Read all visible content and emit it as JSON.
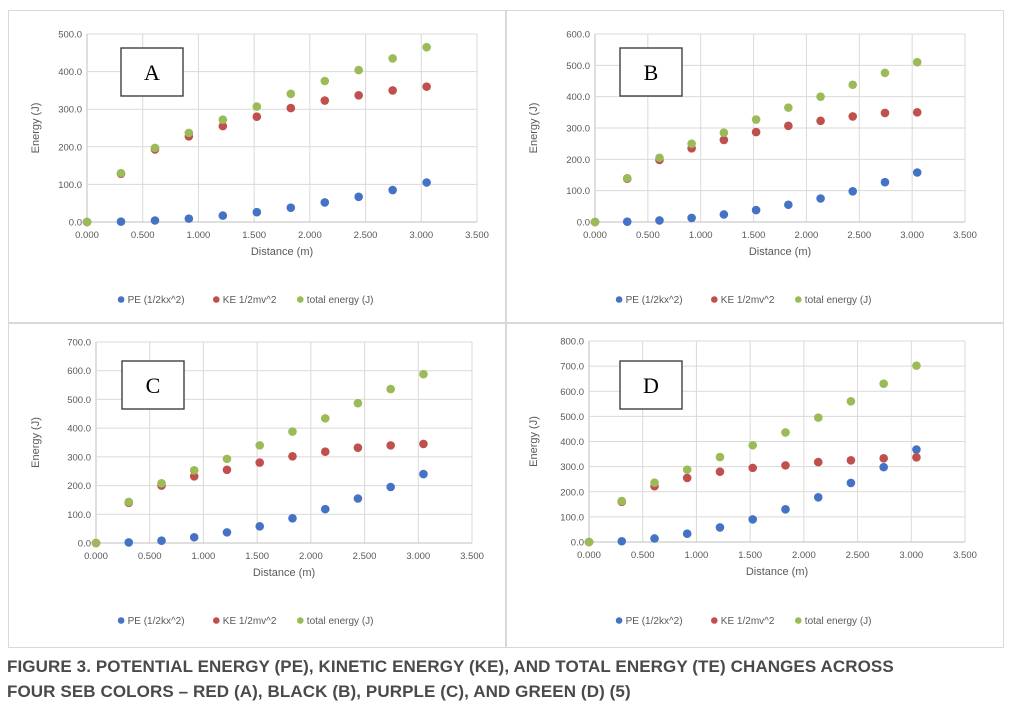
{
  "chart_data": [
    {
      "type": "scatter",
      "panel_label": "A",
      "xlabel": "Distance (m)",
      "ylabel": "Energy (J)",
      "xlim": [
        0,
        3.5
      ],
      "ylim": [
        0,
        500
      ],
      "xticks": [
        "0.000",
        "0.500",
        "1.000",
        "1.500",
        "2.000",
        "2.500",
        "3.000",
        "3.500"
      ],
      "yticks": [
        "0.0",
        "100.0",
        "200.0",
        "300.0",
        "400.0",
        "500.0"
      ],
      "grid": true,
      "legend_position": "bottom",
      "x": [
        0,
        0.305,
        0.61,
        0.914,
        1.219,
        1.524,
        1.829,
        2.134,
        2.438,
        2.743,
        3.048
      ],
      "series": [
        {
          "name": "PE (1/2kx^2)",
          "color": "#4472C4",
          "values": [
            0,
            1,
            4,
            9,
            17,
            26,
            38,
            52,
            67,
            85,
            105
          ]
        },
        {
          "name": "KE 1/2mv^2",
          "color": "#C0504D",
          "values": [
            0,
            128,
            193,
            228,
            255,
            280,
            303,
            323,
            337,
            350,
            360
          ]
        },
        {
          "name": "total energy (J)",
          "color": "#9BBB59",
          "values": [
            0,
            130,
            197,
            237,
            272,
            307,
            341,
            375,
            404,
            435,
            465
          ]
        }
      ]
    },
    {
      "type": "scatter",
      "panel_label": "B",
      "xlabel": "Distance (m)",
      "ylabel": "Energy (J)",
      "xlim": [
        0,
        3.5
      ],
      "ylim": [
        0,
        600
      ],
      "xticks": [
        "0.000",
        "0.500",
        "1.000",
        "1.500",
        "2.000",
        "2.500",
        "3.000",
        "3.500"
      ],
      "yticks": [
        "0.0",
        "100.0",
        "200.0",
        "300.0",
        "400.0",
        "500.0",
        "600.0"
      ],
      "grid": true,
      "legend_position": "bottom",
      "x": [
        0,
        0.305,
        0.61,
        0.914,
        1.219,
        1.524,
        1.829,
        2.134,
        2.438,
        2.743,
        3.048
      ],
      "series": [
        {
          "name": "PE (1/2kx^2)",
          "color": "#4472C4",
          "values": [
            0,
            1,
            5,
            13,
            24,
            38,
            55,
            75,
            98,
            127,
            158
          ]
        },
        {
          "name": "KE 1/2mv^2",
          "color": "#C0504D",
          "values": [
            0,
            138,
            198,
            235,
            262,
            287,
            307,
            323,
            337,
            348,
            350
          ]
        },
        {
          "name": "total energy (J)",
          "color": "#9BBB59",
          "values": [
            0,
            140,
            205,
            250,
            285,
            327,
            365,
            400,
            438,
            476,
            510
          ]
        }
      ]
    },
    {
      "type": "scatter",
      "panel_label": "C",
      "xlabel": "Distance (m)",
      "ylabel": "Energy (J)",
      "xlim": [
        0,
        3.5
      ],
      "ylim": [
        0,
        700
      ],
      "xticks": [
        "0.000",
        "0.500",
        "1.000",
        "1.500",
        "2.000",
        "2.500",
        "3.000",
        "3.500"
      ],
      "yticks": [
        "0.0",
        "100.0",
        "200.0",
        "300.0",
        "400.0",
        "500.0",
        "600.0",
        "700.0"
      ],
      "grid": true,
      "legend_position": "bottom",
      "x": [
        0,
        0.305,
        0.61,
        0.914,
        1.219,
        1.524,
        1.829,
        2.134,
        2.438,
        2.743,
        3.048
      ],
      "series": [
        {
          "name": "PE (1/2kx^2)",
          "color": "#4472C4",
          "values": [
            0,
            2,
            8,
            20,
            37,
            58,
            86,
            118,
            155,
            195,
            240
          ]
        },
        {
          "name": "KE 1/2mv^2",
          "color": "#C0504D",
          "values": [
            0,
            140,
            200,
            232,
            255,
            280,
            302,
            318,
            332,
            340,
            345
          ]
        },
        {
          "name": "total energy (J)",
          "color": "#9BBB59",
          "values": [
            0,
            143,
            208,
            253,
            293,
            340,
            388,
            434,
            487,
            536,
            588
          ]
        }
      ]
    },
    {
      "type": "scatter",
      "panel_label": "D",
      "xlabel": "Distance (m)",
      "ylabel": "Energy (J)",
      "xlim": [
        0,
        3.5
      ],
      "ylim": [
        0,
        800
      ],
      "xticks": [
        "0.000",
        "0.500",
        "1.000",
        "1.500",
        "2.000",
        "2.500",
        "3.000",
        "3.500"
      ],
      "yticks": [
        "0.0",
        "100.0",
        "200.0",
        "300.0",
        "400.0",
        "500.0",
        "600.0",
        "700.0",
        "800.0"
      ],
      "grid": true,
      "legend_position": "bottom",
      "x": [
        0,
        0.305,
        0.61,
        0.914,
        1.219,
        1.524,
        1.829,
        2.134,
        2.438,
        2.743,
        3.048
      ],
      "series": [
        {
          "name": "PE (1/2kx^2)",
          "color": "#4472C4",
          "values": [
            0,
            3,
            14,
            33,
            58,
            90,
            130,
            178,
            235,
            298,
            368
          ]
        },
        {
          "name": "KE 1/2mv^2",
          "color": "#C0504D",
          "values": [
            0,
            160,
            222,
            255,
            280,
            295,
            305,
            318,
            325,
            333,
            337
          ]
        },
        {
          "name": "total energy (J)",
          "color": "#9BBB59",
          "values": [
            0,
            163,
            236,
            288,
            338,
            385,
            436,
            495,
            560,
            630,
            702
          ]
        }
      ]
    }
  ],
  "caption": {
    "line1": "FIGURE 3. POTENTIAL ENERGY (PE), KINETIC ENERGY (KE), AND TOTAL ENERGY (TE) CHANGES ACROSS",
    "line2": "FOUR SEB COLORS – RED (A), BLACK (B), PURPLE (C), AND GREEN (D) (5)"
  }
}
